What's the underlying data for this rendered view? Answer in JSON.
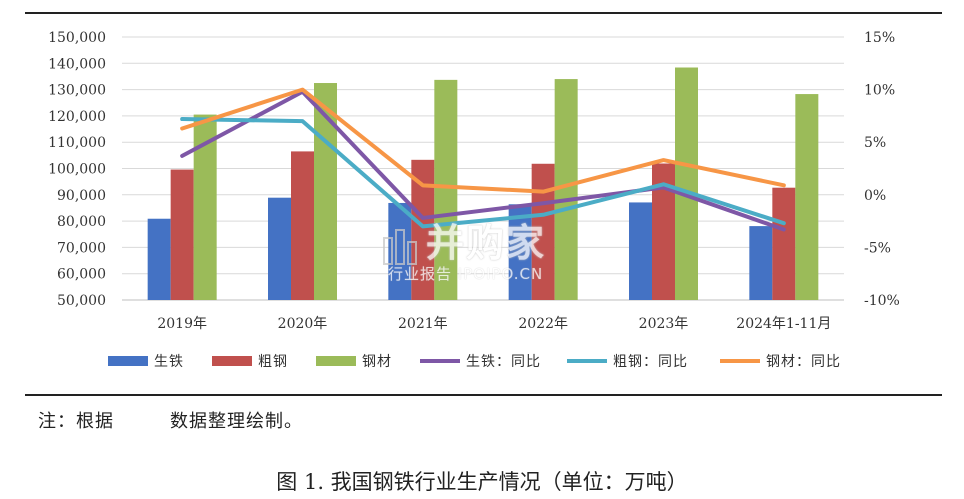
{
  "chart_data": {
    "type": "bar",
    "categories": [
      "2019年",
      "2020年",
      "2021年",
      "2022年",
      "2023年",
      "2024年1-11月"
    ],
    "left_axis": {
      "ylim": [
        50000,
        150000
      ],
      "ticks": [
        50000,
        60000,
        70000,
        80000,
        90000,
        100000,
        110000,
        120000,
        130000,
        140000,
        150000
      ],
      "tick_labels": [
        "50,000",
        "60,000",
        "70,000",
        "80,000",
        "90,000",
        "100,000",
        "110,000",
        "120,000",
        "130,000",
        "140,000",
        "150,000"
      ]
    },
    "right_axis": {
      "ylim": [
        -10,
        15
      ],
      "ticks": [
        -10,
        -5,
        0,
        5,
        10,
        15
      ],
      "tick_labels": [
        "-10%",
        "-5%",
        "0%",
        "5%",
        "10%",
        "15%"
      ]
    },
    "bar_series": [
      {
        "name": "生铁",
        "color": "#4472c4",
        "values": [
          80900,
          88900,
          86900,
          86400,
          87100,
          78100
        ]
      },
      {
        "name": "粗钢",
        "color": "#c0504d",
        "values": [
          99600,
          106500,
          103300,
          101800,
          101900,
          92700
        ]
      },
      {
        "name": "钢材",
        "color": "#9bbb59",
        "values": [
          120500,
          132500,
          133700,
          134000,
          138400,
          128300
        ]
      }
    ],
    "line_series": [
      {
        "name": "生铁：同比",
        "color": "#7e57a6",
        "values": [
          3.7,
          9.8,
          -2.2,
          -0.8,
          0.7,
          -3.3
        ]
      },
      {
        "name": "粗钢：同比",
        "color": "#4bacc6",
        "values": [
          7.2,
          7.0,
          -3.0,
          -1.9,
          1.0,
          -2.7
        ]
      },
      {
        "name": "钢材：同比",
        "color": "#f79646",
        "values": [
          6.3,
          10.0,
          0.9,
          0.3,
          3.3,
          0.9
        ]
      }
    ],
    "legend_position": "bottom",
    "grid": true
  },
  "note": {
    "prefix": "注：根据",
    "suffix": "数据整理绘制。"
  },
  "caption": "图 1. 我国钢铁行业生产情况（单位：万吨）",
  "watermark": {
    "main": "并购家",
    "sub": "行业报告 IPOIPO.CN"
  }
}
